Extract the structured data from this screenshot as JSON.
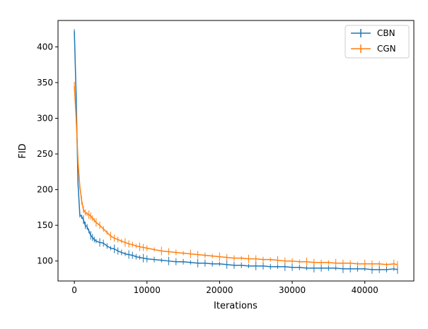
{
  "chart_data": {
    "type": "line",
    "title": "",
    "xlabel": "Iterations",
    "ylabel": "FID",
    "xlim": [
      -2250,
      46750
    ],
    "ylim": [
      72,
      437
    ],
    "xticks": [
      0,
      10000,
      20000,
      30000,
      40000
    ],
    "yticks": [
      100,
      150,
      200,
      250,
      300,
      350,
      400
    ],
    "grid": false,
    "legend_position": "top-right",
    "series": [
      {
        "name": "CBN",
        "color": "#1f77b4",
        "error_bars": true,
        "points": [
          [
            0,
            422
          ],
          [
            250,
            330
          ],
          [
            500,
            210
          ],
          [
            750,
            165
          ],
          [
            1000,
            162
          ],
          [
            1250,
            158
          ],
          [
            1500,
            150
          ],
          [
            1750,
            148
          ],
          [
            2000,
            142
          ],
          [
            2250,
            136
          ],
          [
            2500,
            133
          ],
          [
            2750,
            130
          ],
          [
            3000,
            128
          ],
          [
            3500,
            126
          ],
          [
            4000,
            125
          ],
          [
            4500,
            121
          ],
          [
            5000,
            118
          ],
          [
            5500,
            117
          ],
          [
            6000,
            114
          ],
          [
            6500,
            112
          ],
          [
            7000,
            110
          ],
          [
            7500,
            109
          ],
          [
            8000,
            108
          ],
          [
            8500,
            106
          ],
          [
            9000,
            105
          ],
          [
            9500,
            104
          ],
          [
            10000,
            103
          ],
          [
            11000,
            102
          ],
          [
            12000,
            101
          ],
          [
            13000,
            100
          ],
          [
            14000,
            99
          ],
          [
            15000,
            99
          ],
          [
            16000,
            98
          ],
          [
            17000,
            97
          ],
          [
            18000,
            97
          ],
          [
            19000,
            96
          ],
          [
            20000,
            96
          ],
          [
            21000,
            95
          ],
          [
            22000,
            94
          ],
          [
            23000,
            94
          ],
          [
            24000,
            93
          ],
          [
            25000,
            93
          ],
          [
            26000,
            93
          ],
          [
            27000,
            92
          ],
          [
            28000,
            92
          ],
          [
            29000,
            92
          ],
          [
            30000,
            91
          ],
          [
            31000,
            91
          ],
          [
            32000,
            90
          ],
          [
            33000,
            90
          ],
          [
            34000,
            90
          ],
          [
            35000,
            90
          ],
          [
            36000,
            90
          ],
          [
            37000,
            89
          ],
          [
            38000,
            89
          ],
          [
            39000,
            89
          ],
          [
            40000,
            89
          ],
          [
            41000,
            88
          ],
          [
            42000,
            88
          ],
          [
            43000,
            88
          ],
          [
            44000,
            89
          ],
          [
            44500,
            88
          ]
        ]
      },
      {
        "name": "CGN",
        "color": "#ff7f0e",
        "error_bars": true,
        "points": [
          [
            0,
            345
          ],
          [
            250,
            300
          ],
          [
            500,
            240
          ],
          [
            750,
            205
          ],
          [
            1000,
            185
          ],
          [
            1250,
            172
          ],
          [
            1500,
            168
          ],
          [
            1750,
            166
          ],
          [
            2000,
            165
          ],
          [
            2250,
            163
          ],
          [
            2500,
            160
          ],
          [
            2750,
            157
          ],
          [
            3000,
            154
          ],
          [
            3500,
            150
          ],
          [
            4000,
            145
          ],
          [
            4500,
            140
          ],
          [
            5000,
            135
          ],
          [
            5500,
            132
          ],
          [
            6000,
            130
          ],
          [
            6500,
            128
          ],
          [
            7000,
            126
          ],
          [
            7500,
            124
          ],
          [
            8000,
            123
          ],
          [
            8500,
            121
          ],
          [
            9000,
            120
          ],
          [
            9500,
            119
          ],
          [
            10000,
            118
          ],
          [
            11000,
            116
          ],
          [
            12000,
            114
          ],
          [
            13000,
            113
          ],
          [
            14000,
            112
          ],
          [
            15000,
            111
          ],
          [
            16000,
            110
          ],
          [
            17000,
            109
          ],
          [
            18000,
            108
          ],
          [
            19000,
            107
          ],
          [
            20000,
            106
          ],
          [
            21000,
            105
          ],
          [
            22000,
            104
          ],
          [
            23000,
            104
          ],
          [
            24000,
            103
          ],
          [
            25000,
            103
          ],
          [
            26000,
            102
          ],
          [
            27000,
            102
          ],
          [
            28000,
            101
          ],
          [
            29000,
            100
          ],
          [
            30000,
            100
          ],
          [
            31000,
            99
          ],
          [
            32000,
            99
          ],
          [
            33000,
            98
          ],
          [
            34000,
            98
          ],
          [
            35000,
            98
          ],
          [
            36000,
            97
          ],
          [
            37000,
            97
          ],
          [
            38000,
            97
          ],
          [
            39000,
            96
          ],
          [
            40000,
            96
          ],
          [
            41000,
            96
          ],
          [
            42000,
            96
          ],
          [
            43000,
            95
          ],
          [
            44000,
            96
          ],
          [
            44500,
            95
          ]
        ]
      }
    ]
  }
}
